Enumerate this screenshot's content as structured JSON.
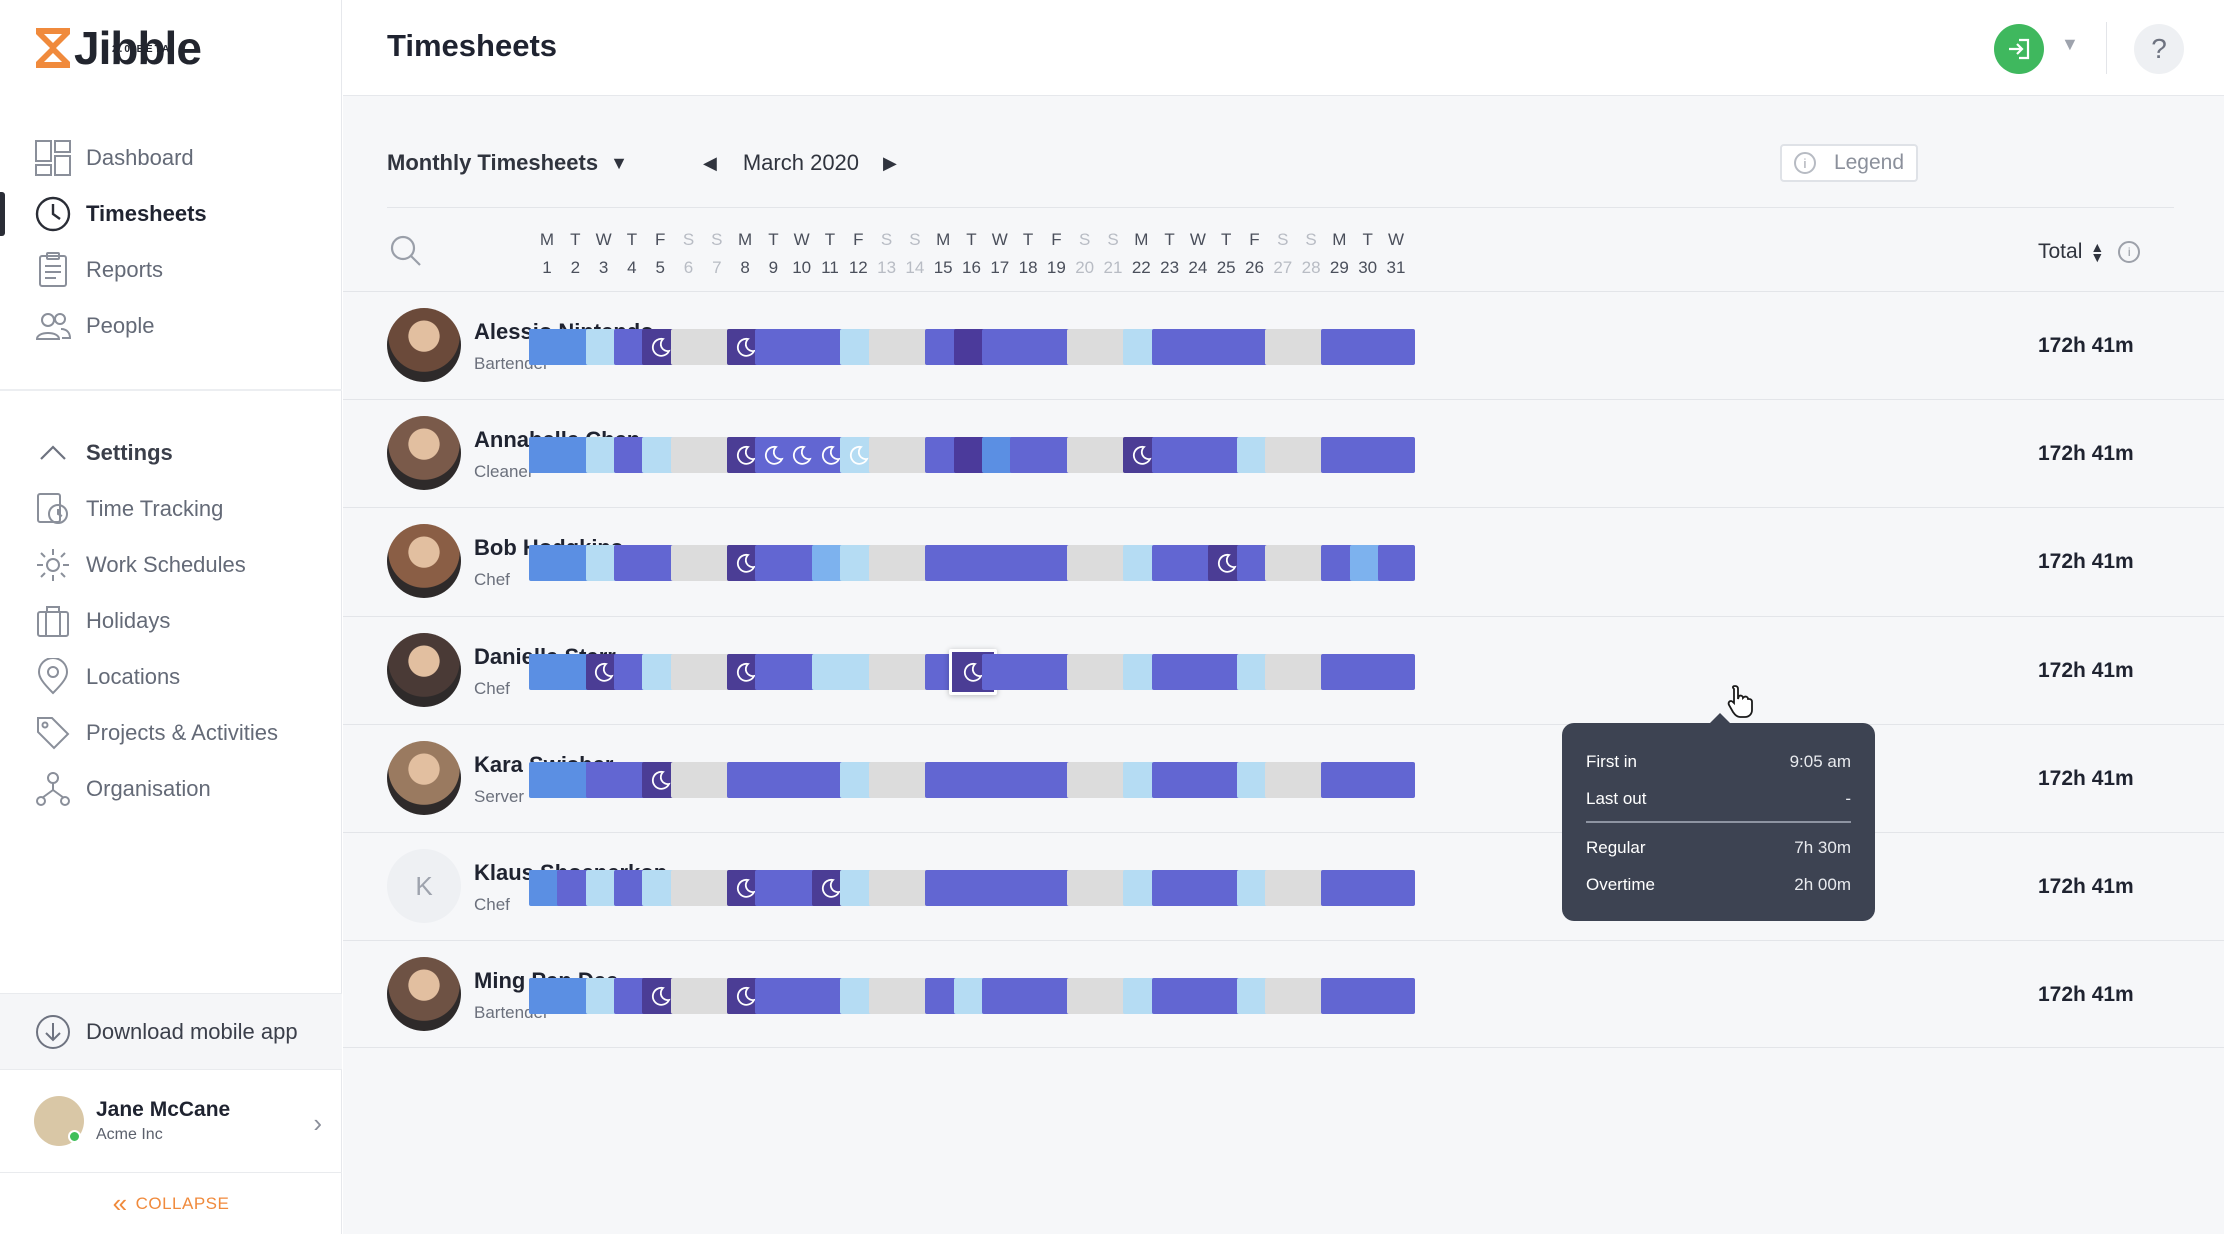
{
  "brand": {
    "name": "Jibble",
    "version": "2.0 BETA"
  },
  "sidebar": {
    "nav": [
      {
        "label": "Dashboard",
        "icon": "dashboard-icon"
      },
      {
        "label": "Timesheets",
        "icon": "clock-icon",
        "active": true
      },
      {
        "label": "Reports",
        "icon": "clipboard-icon"
      },
      {
        "label": "People",
        "icon": "people-icon"
      }
    ],
    "settings": {
      "label": "Settings",
      "items": [
        {
          "label": "Time Tracking",
          "icon": "time-tracking-icon"
        },
        {
          "label": "Work Schedules",
          "icon": "gear-icon"
        },
        {
          "label": "Holidays",
          "icon": "suitcase-icon"
        },
        {
          "label": "Locations",
          "icon": "location-pin-icon"
        },
        {
          "label": "Projects & Activities",
          "icon": "tag-icon"
        },
        {
          "label": "Organisation",
          "icon": "organisation-icon"
        }
      ]
    },
    "download_label": "Download mobile app",
    "user": {
      "name": "Jane McCane",
      "org": "Acme Inc"
    },
    "collapse_label": "COLLAPSE"
  },
  "header": {
    "title": "Timesheets"
  },
  "toolbar": {
    "period": "Monthly Timesheets",
    "month": "March 2020",
    "legend_label": "Legend"
  },
  "days": [
    {
      "d": "M",
      "n": "1"
    },
    {
      "d": "T",
      "n": "2"
    },
    {
      "d": "W",
      "n": "3"
    },
    {
      "d": "T",
      "n": "4"
    },
    {
      "d": "F",
      "n": "5"
    },
    {
      "d": "S",
      "n": "6",
      "w": true
    },
    {
      "d": "S",
      "n": "7",
      "w": true
    },
    {
      "d": "M",
      "n": "8"
    },
    {
      "d": "T",
      "n": "9"
    },
    {
      "d": "W",
      "n": "10"
    },
    {
      "d": "T",
      "n": "11"
    },
    {
      "d": "F",
      "n": "12"
    },
    {
      "d": "S",
      "n": "13",
      "w": true
    },
    {
      "d": "S",
      "n": "14",
      "w": true
    },
    {
      "d": "M",
      "n": "15"
    },
    {
      "d": "T",
      "n": "16"
    },
    {
      "d": "W",
      "n": "17"
    },
    {
      "d": "T",
      "n": "18"
    },
    {
      "d": "F",
      "n": "19"
    },
    {
      "d": "S",
      "n": "20",
      "w": true
    },
    {
      "d": "S",
      "n": "21",
      "w": true
    },
    {
      "d": "M",
      "n": "22"
    },
    {
      "d": "T",
      "n": "23"
    },
    {
      "d": "W",
      "n": "24"
    },
    {
      "d": "T",
      "n": "25"
    },
    {
      "d": "F",
      "n": "26"
    },
    {
      "d": "S",
      "n": "27",
      "w": true
    },
    {
      "d": "S",
      "n": "28",
      "w": true
    },
    {
      "d": "M",
      "n": "29"
    },
    {
      "d": "T",
      "n": "30"
    },
    {
      "d": "W",
      "n": "31"
    }
  ],
  "total_label": "Total",
  "colors": {
    "b": "#5b8fe3",
    "l": "#b5dcf3",
    "p": "#6266d2",
    "d": "#4b3a9b",
    "g": "#dcdcdc",
    "m": "#4b3d95",
    "a": "#7db2ee",
    "accent": "#f08a3c",
    "clockin": "#3fb85e"
  },
  "employees": [
    {
      "name": "Alessio Nintendo",
      "role": "Bartender",
      "total": "172h 41m",
      "avatar_color": "#6b4a3a",
      "cells": [
        "b",
        "b",
        "l",
        "p",
        "m",
        "g",
        "g",
        "m",
        "p",
        "p",
        "p",
        "l",
        "g",
        "g",
        "p",
        "d",
        "p",
        "p",
        "p",
        "g",
        "g",
        "l",
        "p",
        "p",
        "p",
        "p",
        "g",
        "g",
        "p",
        "p",
        "p"
      ]
    },
    {
      "name": "Annabelle Chen",
      "role": "Cleaner",
      "total": "172h 41m",
      "avatar_color": "#7a5a4a",
      "cells": [
        "b",
        "b",
        "l",
        "p",
        "l",
        "g",
        "g",
        "m",
        "mp",
        "mp",
        "mp",
        "ml",
        "g",
        "g",
        "p",
        "d",
        "b",
        "p",
        "p",
        "g",
        "g",
        "m",
        "p",
        "p",
        "p",
        "l",
        "g",
        "g",
        "p",
        "p",
        "p"
      ]
    },
    {
      "name": "Bob Hodgkins",
      "role": "Chef",
      "total": "172h 41m",
      "avatar_color": "#8a5e45",
      "cells": [
        "b",
        "b",
        "l",
        "p",
        "p",
        "g",
        "g",
        "m",
        "p",
        "p",
        "a",
        "l",
        "g",
        "g",
        "p",
        "p",
        "p",
        "p",
        "p",
        "g",
        "g",
        "l",
        "p",
        "p",
        "m",
        "p",
        "g",
        "g",
        "p",
        "a",
        "p"
      ]
    },
    {
      "name": "Daniella Starr",
      "role": "Chef",
      "total": "172h 41m",
      "avatar_color": "#4a3a36",
      "cells": [
        "b",
        "b",
        "m",
        "p",
        "l",
        "g",
        "g",
        "m",
        "p",
        "p",
        "l",
        "l",
        "g",
        "g",
        "p",
        "s",
        "p",
        "p",
        "p",
        "g",
        "g",
        "l",
        "p",
        "p",
        "p",
        "l",
        "g",
        "g",
        "p",
        "p",
        "p"
      ]
    },
    {
      "name": "Kara Swisher",
      "role": "Server",
      "total": "172h 41m",
      "avatar_color": "#9a7a60",
      "cells": [
        "b",
        "b",
        "p",
        "p",
        "m",
        "g",
        "g",
        "p",
        "p",
        "p",
        "p",
        "l",
        "g",
        "g",
        "p",
        "p",
        "p",
        "p",
        "p",
        "g",
        "g",
        "l",
        "p",
        "p",
        "p",
        "l",
        "g",
        "g",
        "p",
        "p",
        "p"
      ]
    },
    {
      "name": "Klaus Shoenerkop",
      "role": "Chef",
      "total": "172h 41m",
      "avatar_initial": "K",
      "cells": [
        "b",
        "p",
        "l",
        "p",
        "l",
        "g",
        "g",
        "m",
        "p",
        "p",
        "m",
        "l",
        "g",
        "g",
        "p",
        "p",
        "p",
        "p",
        "p",
        "g",
        "g",
        "l",
        "p",
        "p",
        "p",
        "l",
        "g",
        "g",
        "p",
        "p",
        "p"
      ]
    },
    {
      "name": "Ming Pan Dee",
      "role": "Bartender",
      "total": "172h 41m",
      "avatar_color": "#6e5244",
      "cells": [
        "b",
        "b",
        "l",
        "p",
        "m",
        "g",
        "g",
        "m",
        "p",
        "p",
        "p",
        "l",
        "g",
        "g",
        "p",
        "l",
        "p",
        "p",
        "p",
        "g",
        "g",
        "l",
        "p",
        "p",
        "p",
        "l",
        "g",
        "g",
        "p",
        "p",
        "p"
      ]
    }
  ],
  "tooltip": {
    "first_in_label": "First in",
    "first_in_value": "9:05 am",
    "last_out_label": "Last out",
    "last_out_value": "-",
    "regular_label": "Regular",
    "regular_value": "7h 30m",
    "overtime_label": "Overtime",
    "overtime_value": "2h 00m"
  }
}
